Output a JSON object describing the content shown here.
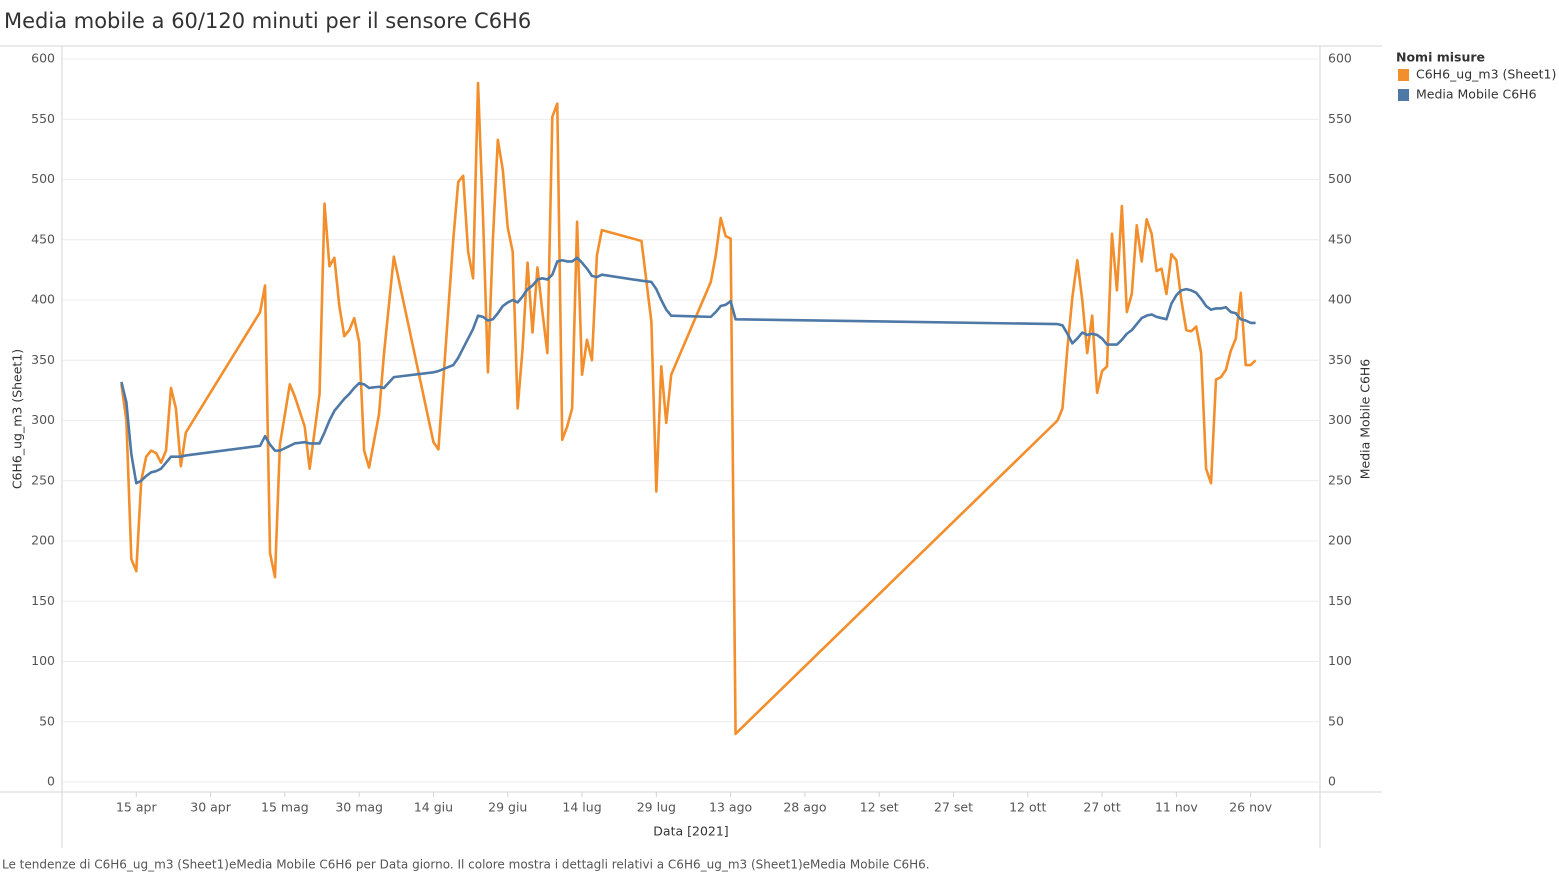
{
  "chart_data": {
    "type": "line",
    "title": "Media mobile a 60/120 minuti per il sensore C6H6",
    "x_label": "Data [2021]",
    "y_label": "C6H6_ug_m3 (Sheet1)",
    "y2_label": "Media Mobile C6H6",
    "legend_title": "Nomi misure",
    "legend_position": "right",
    "caption": "Le tendenze di C6H6_ug_m3 (Sheet1)eMedia Mobile C6H6 per Data giorno. Il colore mostra i dettagli relativi a C6H6_ug_m3 (Sheet1)eMedia Mobile C6H6.",
    "grid": true,
    "xlim": [
      "2021-03-31",
      "2021-12-10"
    ],
    "xticks": [
      {
        "value": "2021-04-15",
        "label": "15 apr"
      },
      {
        "value": "2021-04-30",
        "label": "30 apr"
      },
      {
        "value": "2021-05-15",
        "label": "15 mag"
      },
      {
        "value": "2021-05-30",
        "label": "30 mag"
      },
      {
        "value": "2021-06-14",
        "label": "14 giu"
      },
      {
        "value": "2021-06-29",
        "label": "29 giu"
      },
      {
        "value": "2021-07-14",
        "label": "14 lug"
      },
      {
        "value": "2021-07-29",
        "label": "29 lug"
      },
      {
        "value": "2021-08-13",
        "label": "13 ago"
      },
      {
        "value": "2021-08-28",
        "label": "28 ago"
      },
      {
        "value": "2021-09-12",
        "label": "12 set"
      },
      {
        "value": "2021-09-27",
        "label": "27 set"
      },
      {
        "value": "2021-10-12",
        "label": "12 ott"
      },
      {
        "value": "2021-10-27",
        "label": "27 ott"
      },
      {
        "value": "2021-11-11",
        "label": "11 nov"
      },
      {
        "value": "2021-11-26",
        "label": "26 nov"
      }
    ],
    "ylim": [
      0,
      600
    ],
    "yticks": [
      0,
      50,
      100,
      150,
      200,
      250,
      300,
      350,
      400,
      450,
      500,
      550,
      600
    ],
    "y2lim": [
      0,
      600
    ],
    "y2ticks": [
      0,
      50,
      100,
      150,
      200,
      250,
      300,
      350,
      400,
      450,
      500,
      550,
      600
    ],
    "x": [
      "2021-04-12",
      "2021-04-13",
      "2021-04-14",
      "2021-04-15",
      "2021-04-16",
      "2021-04-17",
      "2021-04-18",
      "2021-04-19",
      "2021-04-20",
      "2021-04-21",
      "2021-04-22",
      "2021-04-23",
      "2021-04-24",
      "2021-04-25",
      "2021-05-10",
      "2021-05-11",
      "2021-05-12",
      "2021-05-13",
      "2021-05-14",
      "2021-05-16",
      "2021-05-17",
      "2021-05-19",
      "2021-05-20",
      "2021-05-22",
      "2021-05-23",
      "2021-05-24",
      "2021-05-25",
      "2021-05-26",
      "2021-05-27",
      "2021-05-28",
      "2021-05-29",
      "2021-05-30",
      "2021-05-31",
      "2021-06-01",
      "2021-06-03",
      "2021-06-04",
      "2021-06-06",
      "2021-06-14",
      "2021-06-15",
      "2021-06-18",
      "2021-06-19",
      "2021-06-20",
      "2021-06-21",
      "2021-06-22",
      "2021-06-23",
      "2021-06-24",
      "2021-06-25",
      "2021-06-26",
      "2021-06-27",
      "2021-06-28",
      "2021-06-29",
      "2021-06-30",
      "2021-07-01",
      "2021-07-02",
      "2021-07-03",
      "2021-07-04",
      "2021-07-05",
      "2021-07-06",
      "2021-07-07",
      "2021-07-08",
      "2021-07-09",
      "2021-07-10",
      "2021-07-11",
      "2021-07-12",
      "2021-07-13",
      "2021-07-14",
      "2021-07-15",
      "2021-07-16",
      "2021-07-17",
      "2021-07-18",
      "2021-07-26",
      "2021-07-28",
      "2021-07-29",
      "2021-07-30",
      "2021-07-31",
      "2021-08-01",
      "2021-08-09",
      "2021-08-10",
      "2021-08-11",
      "2021-08-12",
      "2021-08-13",
      "2021-08-14",
      "2021-10-18",
      "2021-10-19",
      "2021-10-20",
      "2021-10-21",
      "2021-10-22",
      "2021-10-23",
      "2021-10-24",
      "2021-10-25",
      "2021-10-26",
      "2021-10-27",
      "2021-10-28",
      "2021-10-29",
      "2021-10-30",
      "2021-10-31",
      "2021-11-01",
      "2021-11-02",
      "2021-11-03",
      "2021-11-04",
      "2021-11-05",
      "2021-11-06",
      "2021-11-07",
      "2021-11-08",
      "2021-11-09",
      "2021-11-10",
      "2021-11-11",
      "2021-11-12",
      "2021-11-13",
      "2021-11-14",
      "2021-11-15",
      "2021-11-16",
      "2021-11-17",
      "2021-11-18",
      "2021-11-19",
      "2021-11-20",
      "2021-11-21",
      "2021-11-22",
      "2021-11-23",
      "2021-11-24",
      "2021-11-25",
      "2021-11-26",
      "2021-11-27"
    ],
    "series": [
      {
        "name": "C6H6_ug_m3 (Sheet1)",
        "color": "#f28e2b",
        "values": [
          330,
          300,
          185,
          175,
          250,
          270,
          275,
          273,
          265,
          275,
          327,
          310,
          262,
          290,
          390,
          412,
          190,
          170,
          280,
          330,
          320,
          295,
          260,
          322,
          480,
          428,
          435,
          395,
          370,
          375,
          385,
          365,
          275,
          261,
          305,
          355,
          436,
          282,
          276,
          450,
          498,
          503,
          440,
          418,
          580,
          470,
          340,
          450,
          533,
          508,
          460,
          440,
          310,
          360,
          431,
          373,
          427,
          390,
          356,
          552,
          563,
          284,
          295,
          310,
          465,
          338,
          367,
          350,
          437,
          458,
          449,
          382,
          241,
          345,
          298,
          338,
          415,
          437,
          468,
          453,
          451,
          40,
          300,
          310,
          360,
          402,
          433,
          400,
          356,
          387,
          323,
          341,
          345,
          455,
          408,
          478,
          390,
          405,
          462,
          432,
          467,
          455,
          424,
          426,
          405,
          438,
          433,
          400,
          375,
          374,
          378,
          356,
          260,
          248,
          334,
          336,
          342,
          358,
          368,
          406,
          346,
          346,
          350
        ]
      },
      {
        "name": "Media Mobile C6H6",
        "color": "#4e79a7",
        "axis": "y2",
        "values": [
          332,
          315,
          272,
          248,
          250,
          254,
          257,
          258,
          260,
          265,
          270,
          270,
          270,
          271,
          279,
          287,
          280,
          275,
          275,
          279,
          281,
          282,
          281,
          281,
          290,
          300,
          308,
          313,
          318,
          322,
          327,
          331,
          330,
          327,
          328,
          327,
          336,
          340,
          341,
          346,
          352,
          360,
          368,
          376,
          387,
          386,
          383,
          384,
          389,
          395,
          398,
          400,
          398,
          403,
          409,
          412,
          417,
          418,
          417,
          421,
          432,
          433,
          432,
          432,
          435,
          431,
          426,
          420,
          419,
          421,
          416,
          415,
          409,
          400,
          392,
          387,
          386,
          390,
          395,
          396,
          399,
          384,
          380,
          379,
          372,
          364,
          368,
          373,
          371,
          372,
          371,
          368,
          363,
          363,
          363,
          367,
          372,
          375,
          380,
          385,
          387,
          388,
          386,
          385,
          384,
          397,
          404,
          408,
          409,
          408,
          406,
          401,
          395,
          392,
          393,
          393,
          394,
          390,
          389,
          384,
          383,
          381,
          381
        ]
      }
    ]
  }
}
